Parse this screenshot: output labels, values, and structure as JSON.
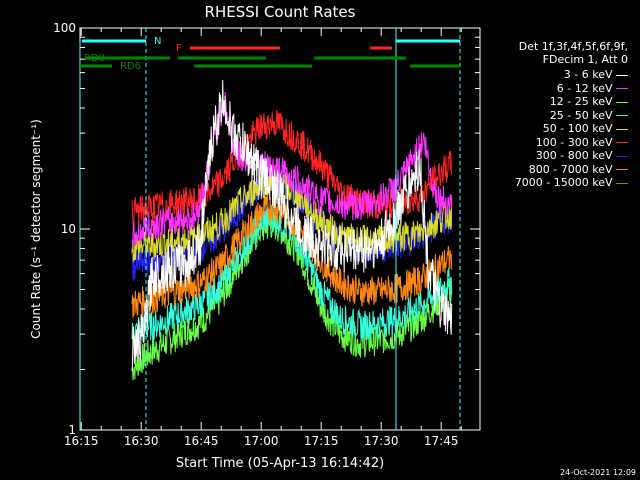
{
  "chart_data": {
    "type": "line",
    "title": "RHESSI Count Rates",
    "xlabel": "Start Time (05-Apr-13 16:14:42)",
    "ylabel": "Count Rate (s⁻¹ detector segment⁻¹)",
    "yscale": "log",
    "ylim": [
      1,
      100
    ],
    "xlim_minutes": [
      0,
      100
    ],
    "x_ticks": [
      "16:15",
      "16:30",
      "16:45",
      "17:00",
      "17:15",
      "17:30",
      "17:45"
    ],
    "y_ticks": [
      "1",
      "10",
      "100"
    ],
    "legend_header": [
      "Det 1f,3f,4f,5f,6f,9f,",
      "FDecim 1, Att 0"
    ],
    "series": [
      {
        "name": "3 - 6 keV",
        "color": "#ffffff",
        "x": [
          13,
          16,
          18,
          22,
          27,
          30,
          33,
          36,
          38,
          40,
          43,
          45,
          48,
          50,
          55,
          60,
          65,
          70,
          75,
          80,
          85,
          87,
          90,
          93
        ],
        "y": [
          2.5,
          3.0,
          5.8,
          6.4,
          6.8,
          8.5,
          28,
          45,
          30,
          27,
          22,
          19,
          17,
          14.5,
          10,
          8.2,
          8.0,
          7.8,
          8.3,
          13,
          21,
          6.5,
          4.0,
          3.4
        ]
      },
      {
        "name": "6 - 12 keV",
        "color": "#ff33ff",
        "x": [
          13,
          16,
          20,
          25,
          29,
          31,
          34,
          36,
          38,
          40,
          43,
          45,
          48,
          50,
          55,
          60,
          65,
          70,
          75,
          80,
          83,
          86,
          88,
          90,
          93
        ],
        "y": [
          9.0,
          10.0,
          10.8,
          11.0,
          11.5,
          16,
          30,
          44,
          28,
          23,
          22,
          21,
          20,
          19.5,
          17,
          14,
          13.2,
          13,
          14,
          17,
          22,
          28,
          17,
          14,
          13.5
        ]
      },
      {
        "name": "12 - 25 keV",
        "color": "#66ff44",
        "x": [
          13,
          16,
          20,
          25,
          30,
          35,
          40,
          45,
          48,
          50,
          55,
          60,
          65,
          70,
          75,
          80,
          85,
          88,
          90,
          93
        ],
        "y": [
          2.0,
          2.3,
          2.6,
          3.0,
          3.4,
          4.4,
          6.8,
          9.8,
          10.5,
          10,
          7.5,
          4.2,
          3.0,
          2.7,
          2.8,
          3.0,
          3.5,
          4.0,
          4.4,
          5.0
        ]
      },
      {
        "name": "25 - 50 keV",
        "color": "#33ffdd",
        "x": [
          13,
          16,
          20,
          25,
          30,
          35,
          40,
          45,
          48,
          50,
          55,
          60,
          65,
          70,
          75,
          80,
          85,
          88,
          90,
          93
        ],
        "y": [
          3.0,
          3.2,
          3.4,
          3.8,
          4.2,
          5.2,
          7.5,
          10.8,
          11.5,
          11,
          8.5,
          5,
          3.6,
          3.3,
          3.4,
          3.6,
          4.2,
          4.6,
          5.0,
          5.6
        ]
      },
      {
        "name": "50 - 100 keV",
        "color": "#dddd22",
        "x": [
          13,
          16,
          20,
          25,
          30,
          35,
          40,
          45,
          48,
          50,
          55,
          60,
          65,
          70,
          75,
          80,
          85,
          88,
          90,
          93
        ],
        "y": [
          8.0,
          8.2,
          8.4,
          8.8,
          9.2,
          10.5,
          13.5,
          16.5,
          17.5,
          17,
          14.5,
          11,
          9.2,
          8.8,
          8.8,
          9.0,
          9.6,
          10.5,
          11.2,
          12
        ]
      },
      {
        "name": "100 - 300 keV",
        "color": "#ff2222",
        "x": [
          13,
          16,
          20,
          25,
          30,
          35,
          40,
          45,
          48,
          50,
          55,
          60,
          65,
          70,
          75,
          80,
          85,
          88,
          90,
          93
        ],
        "y": [
          12,
          12.5,
          13,
          13.5,
          14,
          17,
          24,
          32,
          34,
          33,
          27,
          21,
          15.5,
          13.5,
          13,
          13.5,
          14.5,
          17,
          19,
          21
        ]
      },
      {
        "name": "300 - 800 keV",
        "color": "#2222ff",
        "x": [
          13,
          16,
          20,
          25,
          30,
          35,
          40,
          45,
          48,
          50,
          55,
          60,
          65,
          70,
          75,
          80,
          85,
          88,
          90,
          93
        ],
        "y": [
          6.5,
          6.8,
          7.0,
          7.4,
          8.0,
          9.5,
          12.5,
          16.5,
          18,
          17.5,
          14.5,
          11,
          8.8,
          8.0,
          8.0,
          8.3,
          9.0,
          10,
          10.8,
          11.5
        ]
      },
      {
        "name": "800 - 7000 keV",
        "color": "#ff8811",
        "x": [
          13,
          16,
          20,
          25,
          30,
          35,
          40,
          45,
          48,
          50,
          55,
          60,
          65,
          70,
          75,
          80,
          85,
          88,
          90,
          93
        ],
        "y": [
          4.2,
          4.4,
          4.6,
          5.0,
          5.4,
          6.5,
          9,
          12,
          13,
          12.5,
          10,
          7,
          5.4,
          4.9,
          4.9,
          5.1,
          5.6,
          6.1,
          6.6,
          7.2
        ]
      },
      {
        "name": "7000 - 15000 keV",
        "color": "#998800",
        "x": [],
        "y": []
      }
    ],
    "annotations": {
      "top_labels": [
        "N",
        "F",
        "RD0",
        "RD6"
      ],
      "vertical_dashed_minutes": [
        16.5,
        95
      ],
      "vertical_solid_minutes": [
        79
      ]
    }
  },
  "footer": {
    "timestamp": "24-Oct-2021 12:09"
  },
  "colors": {
    "background": "#000000",
    "axes": "#ffffff",
    "N_bar": "#33ffff",
    "F_bar": "#ff2222",
    "RD_bar": "#008800"
  }
}
